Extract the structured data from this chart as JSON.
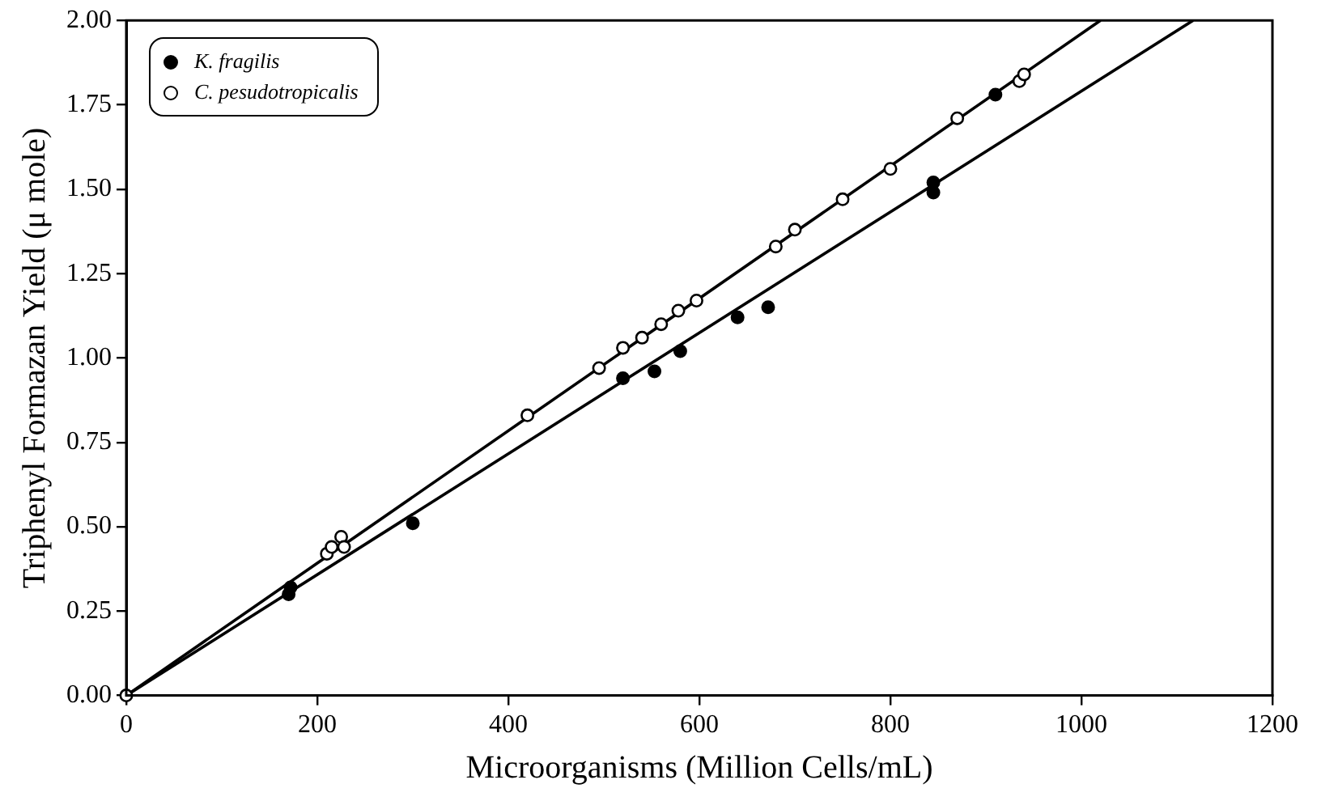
{
  "chart_data": {
    "type": "scatter",
    "xlabel": "Microorganisms (Million Cells/mL)",
    "ylabel": "Triphenyl Formazan Yield (μ mole)",
    "xlim": [
      0,
      1200
    ],
    "xticks": [
      0,
      200,
      400,
      600,
      800,
      1000,
      1200
    ],
    "ylim": [
      0,
      2
    ],
    "yticks": [
      {
        "value": 0,
        "label": "0.00"
      },
      {
        "value": 0.25,
        "label": "0.25"
      },
      {
        "value": 0.5,
        "label": "0.50"
      },
      {
        "value": 0.75,
        "label": "0.75"
      },
      {
        "value": 1,
        "label": "1.00"
      },
      {
        "value": 1.25,
        "label": "1.25"
      },
      {
        "value": 1.5,
        "label": "1.50"
      },
      {
        "value": 1.75,
        "label": "1.75"
      },
      {
        "value": 2,
        "label": "2.00"
      }
    ],
    "grid": false,
    "legend": "top left",
    "marker": "circle",
    "series": [
      {
        "name": "K. fragilis",
        "color": "#000000",
        "x": [
          170,
          172,
          300,
          520,
          553,
          580,
          640,
          672,
          845,
          845,
          910
        ],
        "values": [
          0.3,
          0.32,
          0.51,
          0.94,
          0.96,
          1.02,
          1.12,
          1.15,
          1.49,
          1.52,
          1.78
        ]
      },
      {
        "name": "C. pesudotropicalis",
        "color": "#ffffff",
        "x": [
          0,
          210,
          215,
          225,
          228,
          420,
          495,
          520,
          540,
          560,
          578,
          597,
          680,
          700,
          750,
          800,
          870,
          935,
          940
        ],
        "values": [
          0,
          0.42,
          0.44,
          0.47,
          0.44,
          0.83,
          0.97,
          1.03,
          1.06,
          1.1,
          1.14,
          1.17,
          1.33,
          1.38,
          1.47,
          1.56,
          1.71,
          1.82,
          1.84
        ]
      },
      {
        "type": "line",
        "marker": "none",
        "color": "#000000",
        "x": [
          0,
          1117
        ],
        "values": [
          0,
          2
        ]
      },
      {
        "type": "line",
        "marker": "none",
        "color": "#000000",
        "x": [
          0,
          1020
        ],
        "values": [
          0,
          2
        ]
      }
    ]
  }
}
